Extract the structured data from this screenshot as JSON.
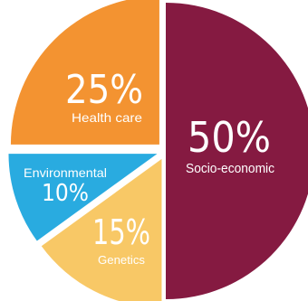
{
  "chart_data": {
    "type": "pie",
    "unit": "%",
    "slices": [
      {
        "key": "socio",
        "label": "Socio-economic",
        "value": 50,
        "value_label": "50%",
        "color": "#851a41",
        "exploded": false
      },
      {
        "key": "genetics",
        "label": "Genetics",
        "value": 15,
        "value_label": "15%",
        "color": "#f8c866",
        "exploded": true
      },
      {
        "key": "environmental",
        "label": "Environmental",
        "value": 10,
        "value_label": "10%",
        "color": "#29abe0",
        "exploded": true
      },
      {
        "key": "health",
        "label": "Health care",
        "value": 25,
        "value_label": "25%",
        "color": "#f39331",
        "exploded": true
      }
    ]
  }
}
